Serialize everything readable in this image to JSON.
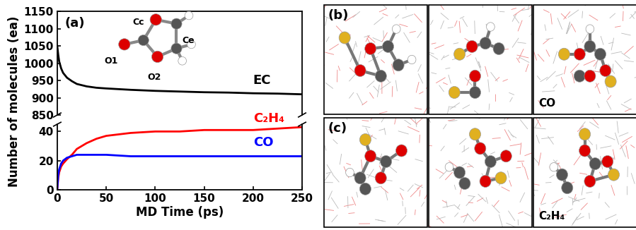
{
  "chart_data": [
    {
      "type": "line",
      "title": "(a)",
      "ylabel": "Number of molecules (ea)",
      "annotations": [
        "O1",
        "Cc",
        "O2",
        "Ce"
      ],
      "x": [
        0,
        1,
        2,
        4,
        6,
        10,
        15,
        20,
        30,
        40,
        50,
        75,
        100,
        125,
        150,
        175,
        200,
        225,
        250
      ],
      "series": [
        {
          "name": "EC",
          "color": "#000000",
          "values": [
            1050,
            1025,
            1005,
            985,
            972,
            958,
            948,
            940,
            933,
            929,
            927,
            923,
            920,
            918,
            916,
            915,
            913,
            912,
            910
          ]
        }
      ],
      "xlim": [
        0,
        250
      ],
      "xticks": [
        0,
        50,
        100,
        150,
        200,
        250
      ],
      "ylim": [
        850,
        1150
      ],
      "yticks": [
        850,
        900,
        950,
        1000,
        1050,
        1100,
        1150
      ],
      "tick_labels": "y"
    },
    {
      "type": "line",
      "xlabel": "MD Time (ps)",
      "x": [
        0,
        1,
        2,
        4,
        6,
        10,
        15,
        20,
        30,
        40,
        50,
        75,
        100,
        125,
        150,
        175,
        200,
        225,
        250
      ],
      "series": [
        {
          "name": "C₂H₄",
          "color": "#ff0000",
          "values": [
            0,
            8,
            12,
            16,
            18,
            21,
            24,
            28,
            32,
            35,
            37,
            39,
            40,
            40,
            41,
            41,
            41,
            42,
            43
          ]
        },
        {
          "name": "CO",
          "color": "#0000ff",
          "values": [
            0,
            10,
            14,
            18,
            20,
            22,
            23,
            24,
            24,
            24,
            24,
            23,
            23,
            23,
            23,
            23,
            23,
            23,
            23
          ]
        }
      ],
      "xlim": [
        0,
        250
      ],
      "xticks": [
        0,
        50,
        100,
        150,
        200,
        250
      ],
      "ylim": [
        0,
        45
      ],
      "yticks": [
        0,
        20,
        40
      ]
    }
  ],
  "panels": [
    {
      "label": "(b)",
      "annotation": "CO"
    },
    {
      "label": "(c)",
      "annotation": "C₂H₄"
    }
  ]
}
